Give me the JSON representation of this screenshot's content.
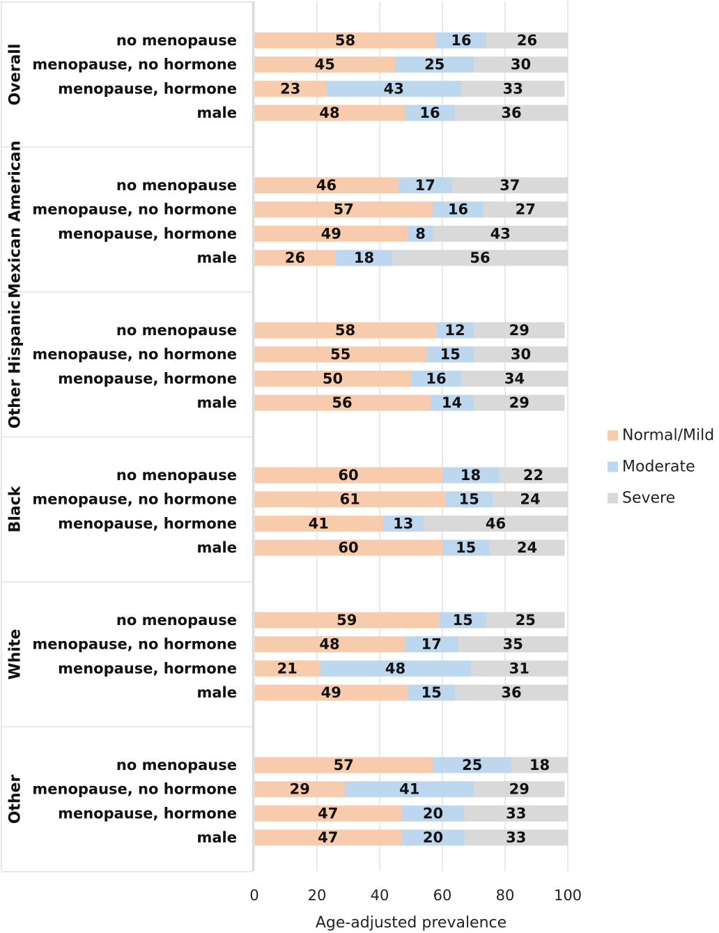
{
  "chart_data": {
    "type": "bar",
    "orientation": "horizontal",
    "stacked": true,
    "xlabel": "Age-adjusted prevalence",
    "xlim": [
      0,
      100
    ],
    "xticks": [
      "0",
      "20",
      "40",
      "60",
      "80",
      "100"
    ],
    "grid": true,
    "legend_position": "right",
    "series": [
      {
        "name": "Normal/Mild",
        "color": "#f8cbad"
      },
      {
        "name": "Moderate",
        "color": "#bdd7ee"
      },
      {
        "name": "Severe",
        "color": "#d9d9d9"
      }
    ],
    "groups": [
      {
        "name": "Overall",
        "rows": [
          {
            "label": "no menopause",
            "values": [
              58,
              16,
              26
            ]
          },
          {
            "label": "menopause, no hormone",
            "values": [
              45,
              25,
              30
            ]
          },
          {
            "label": "menopause, hormone",
            "values": [
              23,
              43,
              33
            ]
          },
          {
            "label": "male",
            "values": [
              48,
              16,
              36
            ]
          }
        ]
      },
      {
        "name": "Mexican American",
        "rows": [
          {
            "label": "no menopause",
            "values": [
              46,
              17,
              37
            ]
          },
          {
            "label": "menopause, no hormone",
            "values": [
              57,
              16,
              27
            ]
          },
          {
            "label": "menopause, hormone",
            "values": [
              49,
              8,
              43
            ]
          },
          {
            "label": "male",
            "values": [
              26,
              18,
              56
            ]
          }
        ]
      },
      {
        "name": "Other Hispanic",
        "rows": [
          {
            "label": "no menopause",
            "values": [
              58,
              12,
              29
            ]
          },
          {
            "label": "menopause, no hormone",
            "values": [
              55,
              15,
              30
            ]
          },
          {
            "label": "menopause, hormone",
            "values": [
              50,
              16,
              34
            ]
          },
          {
            "label": "male",
            "values": [
              56,
              14,
              29
            ]
          }
        ]
      },
      {
        "name": "Black",
        "rows": [
          {
            "label": "no menopause",
            "values": [
              60,
              18,
              22
            ]
          },
          {
            "label": "menopause, no hormone",
            "values": [
              61,
              15,
              24
            ]
          },
          {
            "label": "menopause, hormone",
            "values": [
              41,
              13,
              46
            ]
          },
          {
            "label": "male",
            "values": [
              60,
              15,
              24
            ]
          }
        ]
      },
      {
        "name": "White",
        "rows": [
          {
            "label": "no menopause",
            "values": [
              59,
              15,
              25
            ]
          },
          {
            "label": "menopause, no hormone",
            "values": [
              48,
              17,
              35
            ]
          },
          {
            "label": "menopause, hormone",
            "values": [
              21,
              48,
              31
            ]
          },
          {
            "label": "male",
            "values": [
              49,
              15,
              36
            ]
          }
        ]
      },
      {
        "name": "Other",
        "rows": [
          {
            "label": "no menopause",
            "values": [
              57,
              25,
              18
            ]
          },
          {
            "label": "menopause, no hormone",
            "values": [
              29,
              41,
              29
            ]
          },
          {
            "label": "menopause, hormone",
            "values": [
              47,
              20,
              33
            ]
          },
          {
            "label": "male",
            "values": [
              47,
              20,
              33
            ]
          }
        ]
      }
    ]
  }
}
